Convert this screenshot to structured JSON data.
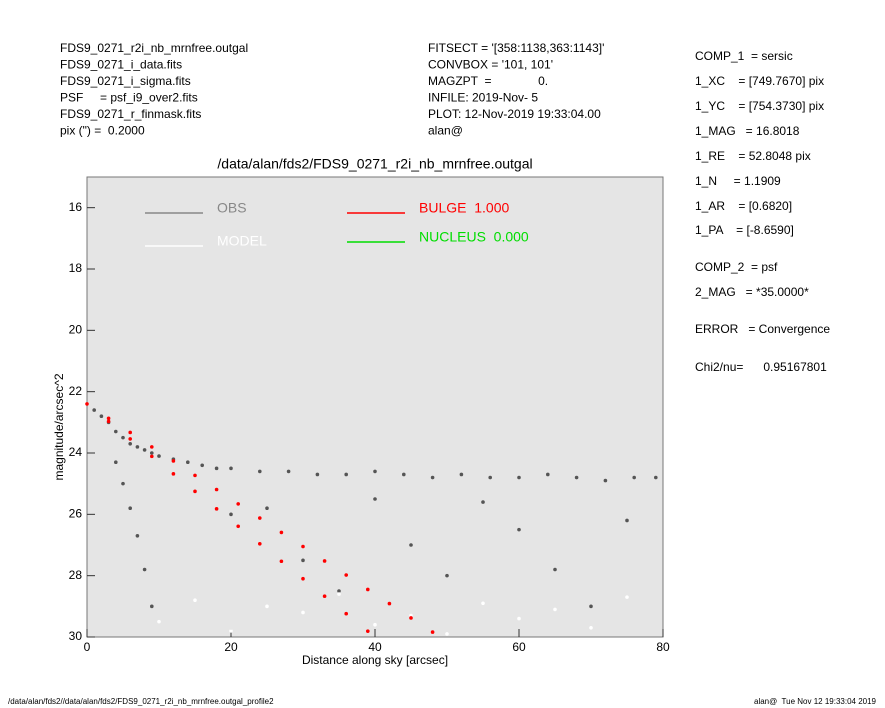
{
  "header": {
    "left": [
      "FDS9_0271_r2i_nb_mrnfree.outgal",
      "FDS9_0271_i_data.fits",
      "FDS9_0271_i_sigma.fits",
      "PSF     = psf_i9_over2.fits",
      "FDS9_0271_r_finmask.fits",
      "pix (\") =  0.2000"
    ],
    "middle": [
      "FITSECT = '[358:1138,363:1143]'",
      "CONVBOX = '101, 101'",
      "MAGZPT  =              0.",
      "INFILE: 2019-Nov- 5",
      "PLOT: 12-Nov-2019 19:33:04.00",
      "alan@"
    ],
    "right": [
      "COMP_1  = sersic",
      "1_XC    = [749.7670] pix",
      "1_YC    = [754.3730] pix",
      "1_MAG   = 16.8018",
      "1_RE    = 52.8048 pix",
      "1_N     = 1.1909",
      "1_AR    = [0.6820]",
      "1_PA    = [-8.6590]",
      "COMP_2  = psf",
      "2_MAG   = *35.0000*",
      "ERROR   = Convergence",
      "Chi2/nu=      0.95167801"
    ]
  },
  "footer": {
    "left": "/data/alan/fds2//data/alan/fds2/FDS9_0271_r2i_nb_mrnfree.outgal_profile2",
    "right": "alan@  Tue Nov 12 19:33:04 2019"
  },
  "chart_data": {
    "type": "scatter",
    "title": "/data/alan/fds2/FDS9_0271_r2i_nb_mrnfree.outgal",
    "x_label": "Distance along sky [arcsec]",
    "y_label": "magnitude/arcsec^2",
    "xlim": [
      0,
      80
    ],
    "ylim": [
      15,
      30
    ],
    "y_inverted": true,
    "xticks": [
      0,
      20,
      40,
      60,
      80
    ],
    "yticks": [
      16,
      18,
      20,
      22,
      24,
      26,
      28,
      30
    ],
    "background": "#e5e5e5",
    "series": [
      {
        "name": "OBS",
        "color": "#555555",
        "legend_color": "#888888",
        "x": [
          1,
          2,
          3,
          4,
          5,
          6,
          7,
          8,
          9,
          10,
          12,
          14,
          16,
          18,
          20,
          24,
          28,
          32,
          36,
          40,
          44,
          48,
          52,
          56,
          60,
          64,
          68,
          72,
          76,
          79,
          4,
          5,
          6,
          7,
          8,
          9,
          20,
          30,
          40,
          50,
          60,
          70,
          25,
          35,
          45,
          55,
          65,
          75
        ],
        "values": [
          22.6,
          22.8,
          23.0,
          23.3,
          23.5,
          23.7,
          23.8,
          23.9,
          24.0,
          24.1,
          24.2,
          24.3,
          24.4,
          24.5,
          24.5,
          24.6,
          24.6,
          24.7,
          24.7,
          24.6,
          24.7,
          24.8,
          24.7,
          24.8,
          24.8,
          24.7,
          24.8,
          24.9,
          24.8,
          24.8,
          24.3,
          25.0,
          25.8,
          26.7,
          27.8,
          29.0,
          26,
          27.5,
          25.5,
          28,
          26.5,
          29,
          25.8,
          28.5,
          27,
          25.6,
          27.8,
          26.2
        ]
      },
      {
        "name": "MODEL",
        "color": "#ffffff",
        "legend_color": "#ffffff",
        "x": [
          10,
          20,
          30,
          40,
          50,
          60,
          70,
          15,
          25,
          35,
          45,
          55,
          65,
          75
        ],
        "values": [
          29.5,
          29.8,
          29.2,
          29.6,
          29.9,
          29.4,
          29.7,
          28.8,
          29.0,
          28.6,
          29.3,
          28.9,
          29.1,
          28.7
        ]
      },
      {
        "name": "BULGE  1.000",
        "color": "#ff0000",
        "legend_color": "#ff0000",
        "x": [
          0,
          3,
          6,
          9,
          12,
          15,
          18,
          21,
          24,
          27,
          30,
          33,
          36,
          39,
          3,
          6,
          9,
          12,
          15,
          18,
          21,
          24,
          27,
          30,
          33,
          36,
          39,
          42,
          45,
          48
        ],
        "values": [
          22.4,
          22.97,
          23.54,
          24.11,
          24.68,
          25.25,
          25.82,
          26.39,
          26.96,
          27.53,
          28.1,
          28.67,
          29.24,
          29.81,
          22.87,
          23.33,
          23.8,
          24.26,
          24.73,
          25.19,
          25.66,
          26.12,
          26.59,
          27.05,
          27.52,
          27.98,
          28.45,
          28.91,
          29.38,
          29.84
        ]
      },
      {
        "name": "NUCLEUS  0.000",
        "color": "#00dd00",
        "legend_color": "#00dd00",
        "x": [],
        "values": []
      }
    ]
  }
}
